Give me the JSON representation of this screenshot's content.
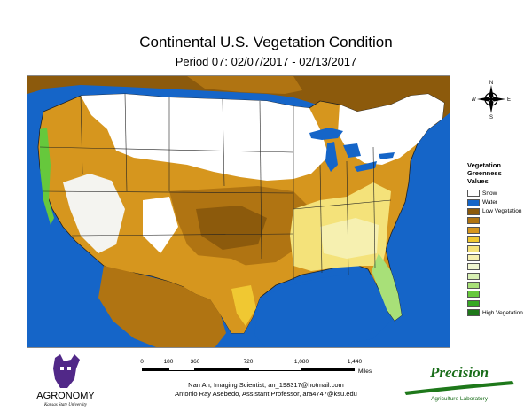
{
  "map": {
    "title": "Continental U.S. Vegetation Condition",
    "subtitle": "Period 07: 02/07/2017 - 02/13/2017"
  },
  "compass": {
    "n": "N",
    "s": "S",
    "e": "E",
    "w": "W"
  },
  "legend": {
    "title_lines": [
      "Vegetation",
      "Greenness",
      "Values"
    ],
    "items": [
      {
        "label": "Snow",
        "color": "#ffffff"
      },
      {
        "label": "Water",
        "color": "#1565c8"
      },
      {
        "label": "Low Vegetation",
        "color": "#8c5a0c"
      },
      {
        "label": "",
        "color": "#b07412"
      },
      {
        "label": "",
        "color": "#d6961e"
      },
      {
        "label": "",
        "color": "#f0c832"
      },
      {
        "label": "",
        "color": "#f4e27a"
      },
      {
        "label": "",
        "color": "#f6f0b0"
      },
      {
        "label": "",
        "color": "#f0f6d0"
      },
      {
        "label": "",
        "color": "#d8f0b4"
      },
      {
        "label": "",
        "color": "#a8e078"
      },
      {
        "label": "",
        "color": "#66c83c"
      },
      {
        "label": "",
        "color": "#36a824"
      },
      {
        "label": "High Vegetation",
        "color": "#1e781a"
      }
    ]
  },
  "scale": {
    "ticks": [
      "0",
      "180",
      "360",
      "720",
      "1,080",
      "1,440"
    ],
    "tick_values": [
      0,
      180,
      360,
      720,
      1080,
      1440
    ],
    "unit": "Miles"
  },
  "credits": {
    "line1": "Nan An, Imaging Scientist, an_198317@hotmail.com",
    "line2": "Antonio Ray Asebedo, Assistant Professor, ara4747@ksu.edu"
  },
  "logos": {
    "agronomy": {
      "name": "AGRONOMY",
      "subtitle": "Kansas State University"
    },
    "precision": {
      "name": "Precision",
      "subtitle": "Agriculture Laboratory"
    }
  },
  "colors": {
    "ocean": "#1565c8",
    "snow": "#ffffff",
    "low_vegetation": "#8c5a0c",
    "mid_vegetation": "#d6961e",
    "high_vegetation": "#1e781a",
    "k_state_purple": "#512888"
  }
}
